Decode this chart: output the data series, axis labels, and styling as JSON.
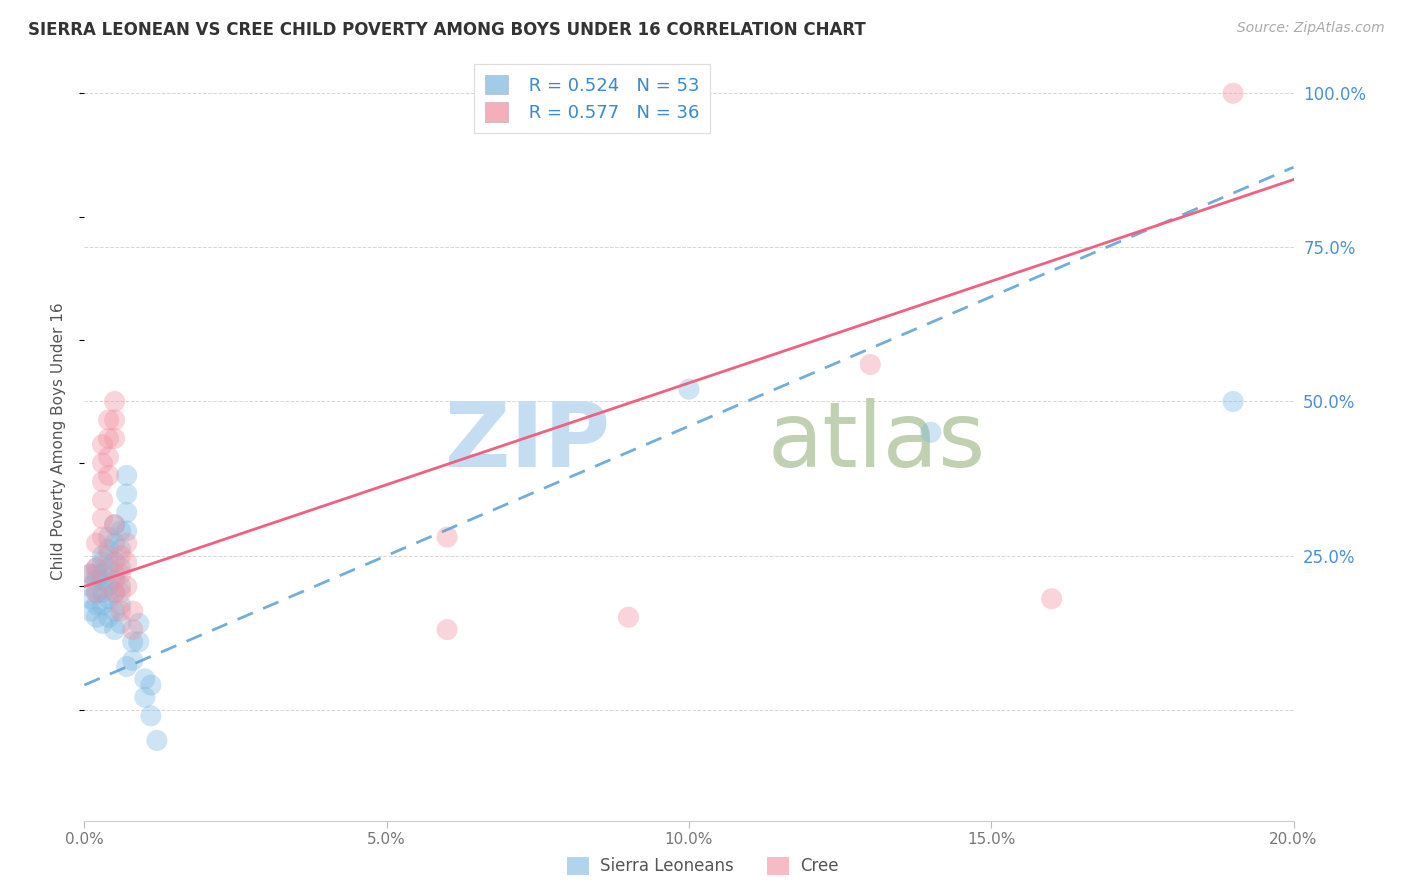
{
  "title": "SIERRA LEONEAN VS CREE CHILD POVERTY AMONG BOYS UNDER 16 CORRELATION CHART",
  "source": "Source: ZipAtlas.com",
  "ylabel": "Child Poverty Among Boys Under 16",
  "background_color": "#ffffff",
  "grid_color": "#cccccc",
  "sl_color": "#7ab8e0",
  "cree_color": "#f090a0",
  "sl_line_color": "#5a9fd4",
  "cree_line_color": "#f06080",
  "sl_R": "0.524",
  "sl_N": "53",
  "cree_R": "0.577",
  "cree_N": "36",
  "xmin": 0.0,
  "xmax": 0.2,
  "ymin": -0.18,
  "ymax": 1.05,
  "yticks": [
    0.0,
    0.25,
    0.5,
    0.75,
    1.0
  ],
  "ytick_labels": [
    "",
    "25.0%",
    "50.0%",
    "75.0%",
    "100.0%"
  ],
  "xticks": [
    0.0,
    0.05,
    0.1,
    0.15,
    0.2
  ],
  "xtick_labels": [
    "0.0%",
    "5.0%",
    "10.0%",
    "15.0%",
    "20.0%"
  ],
  "sl_slope": 4.2,
  "sl_intercept": 0.04,
  "cree_slope": 3.3,
  "cree_intercept": 0.2,
  "sierra_leonean_points": [
    [
      0.001,
      0.2
    ],
    [
      0.001,
      0.18
    ],
    [
      0.001,
      0.22
    ],
    [
      0.001,
      0.16
    ],
    [
      0.002,
      0.22
    ],
    [
      0.002,
      0.19
    ],
    [
      0.002,
      0.17
    ],
    [
      0.002,
      0.23
    ],
    [
      0.002,
      0.21
    ],
    [
      0.002,
      0.15
    ],
    [
      0.003,
      0.24
    ],
    [
      0.003,
      0.21
    ],
    [
      0.003,
      0.19
    ],
    [
      0.003,
      0.17
    ],
    [
      0.003,
      0.25
    ],
    [
      0.003,
      0.14
    ],
    [
      0.003,
      0.22
    ],
    [
      0.004,
      0.26
    ],
    [
      0.004,
      0.23
    ],
    [
      0.004,
      0.2
    ],
    [
      0.004,
      0.18
    ],
    [
      0.004,
      0.28
    ],
    [
      0.004,
      0.15
    ],
    [
      0.005,
      0.27
    ],
    [
      0.005,
      0.24
    ],
    [
      0.005,
      0.21
    ],
    [
      0.005,
      0.19
    ],
    [
      0.005,
      0.3
    ],
    [
      0.005,
      0.16
    ],
    [
      0.005,
      0.13
    ],
    [
      0.006,
      0.29
    ],
    [
      0.006,
      0.26
    ],
    [
      0.006,
      0.23
    ],
    [
      0.006,
      0.2
    ],
    [
      0.006,
      0.17
    ],
    [
      0.006,
      0.14
    ],
    [
      0.007,
      0.38
    ],
    [
      0.007,
      0.35
    ],
    [
      0.007,
      0.32
    ],
    [
      0.007,
      0.29
    ],
    [
      0.007,
      0.07
    ],
    [
      0.008,
      0.11
    ],
    [
      0.008,
      0.08
    ],
    [
      0.009,
      0.14
    ],
    [
      0.009,
      0.11
    ],
    [
      0.01,
      0.05
    ],
    [
      0.01,
      0.02
    ],
    [
      0.011,
      0.04
    ],
    [
      0.011,
      -0.01
    ],
    [
      0.012,
      -0.05
    ],
    [
      0.1,
      0.52
    ],
    [
      0.14,
      0.45
    ],
    [
      0.19,
      0.5
    ]
  ],
  "cree_points": [
    [
      0.001,
      0.22
    ],
    [
      0.002,
      0.27
    ],
    [
      0.002,
      0.23
    ],
    [
      0.002,
      0.19
    ],
    [
      0.003,
      0.43
    ],
    [
      0.003,
      0.4
    ],
    [
      0.003,
      0.37
    ],
    [
      0.003,
      0.34
    ],
    [
      0.003,
      0.31
    ],
    [
      0.003,
      0.28
    ],
    [
      0.004,
      0.47
    ],
    [
      0.004,
      0.44
    ],
    [
      0.004,
      0.41
    ],
    [
      0.004,
      0.38
    ],
    [
      0.005,
      0.5
    ],
    [
      0.005,
      0.47
    ],
    [
      0.005,
      0.44
    ],
    [
      0.005,
      0.22
    ],
    [
      0.005,
      0.19
    ],
    [
      0.006,
      0.25
    ],
    [
      0.006,
      0.22
    ],
    [
      0.006,
      0.19
    ],
    [
      0.006,
      0.16
    ],
    [
      0.007,
      0.27
    ],
    [
      0.007,
      0.24
    ],
    [
      0.007,
      0.2
    ],
    [
      0.008,
      0.16
    ],
    [
      0.008,
      0.13
    ],
    [
      0.06,
      0.28
    ],
    [
      0.06,
      0.13
    ],
    [
      0.09,
      0.15
    ],
    [
      0.13,
      0.56
    ],
    [
      0.16,
      0.18
    ],
    [
      0.19,
      1.0
    ],
    [
      0.005,
      0.3
    ],
    [
      0.004,
      0.25
    ]
  ]
}
